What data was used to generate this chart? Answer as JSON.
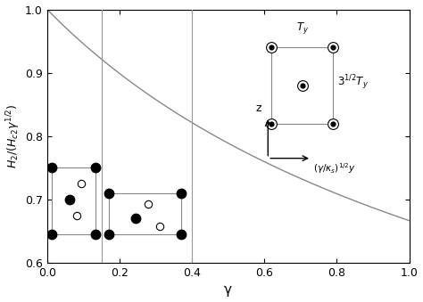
{
  "xlabel": "γ",
  "xlim": [
    0.0,
    1.0
  ],
  "ylim": [
    0.6,
    1.0
  ],
  "xticks": [
    0.0,
    0.2,
    0.4,
    0.6,
    0.8,
    1.0
  ],
  "yticks": [
    0.6,
    0.7,
    0.8,
    0.9,
    1.0
  ],
  "vlines": [
    0.15,
    0.4
  ],
  "curve_color": "#888888",
  "vline_color": "#999999",
  "box_color": "#888888",
  "background_color": "#ffffff",
  "curve_power": 0.5
}
